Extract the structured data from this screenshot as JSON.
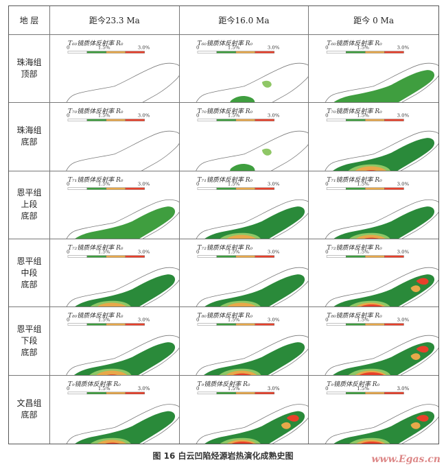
{
  "header": {
    "layer": "地  层",
    "times": [
      "距今23.3 Ma",
      "距今16.0 Ma",
      "距今 0 Ma"
    ]
  },
  "rows": [
    {
      "label": "珠海组\n顶部",
      "legend": "T₆₀镜质体反射率 R₀",
      "levels": [
        0,
        1,
        2
      ]
    },
    {
      "label": "珠海组\n底部",
      "legend": "T₇₀镜质体反射率 R₀",
      "levels": [
        0,
        1,
        4
      ]
    },
    {
      "label": "恩平组\n上段\n底部",
      "legend": "T₇₁镜质体反射率 R₀",
      "levels": [
        2,
        3,
        5
      ]
    },
    {
      "label": "恩平组\n中段\n底部",
      "legend": "T₇₂镜质体反射率 R₀",
      "levels": [
        3,
        4,
        6
      ]
    },
    {
      "label": "恩平组\n下段\n底部",
      "legend": "T₈₀镜质体反射率 R₀",
      "levels": [
        4,
        5,
        6
      ]
    },
    {
      "label": "文昌组\n底部",
      "legend": "T₉镜质体反射率 R₀",
      "levels": [
        5,
        6,
        7
      ]
    }
  ],
  "legend_scale": {
    "min": "0",
    "mid": "1.5%",
    "max": "3.0%"
  },
  "colors": {
    "outline": "#777777",
    "light_green": "#8fc766",
    "green": "#3f9e3f",
    "dark_green": "#2a8a3a",
    "orange": "#e8a84a",
    "red": "#e8402a"
  },
  "caption": "图 16    白云凹陷烃源岩热演化成熟史图",
  "watermark": "www.Egas.cn"
}
